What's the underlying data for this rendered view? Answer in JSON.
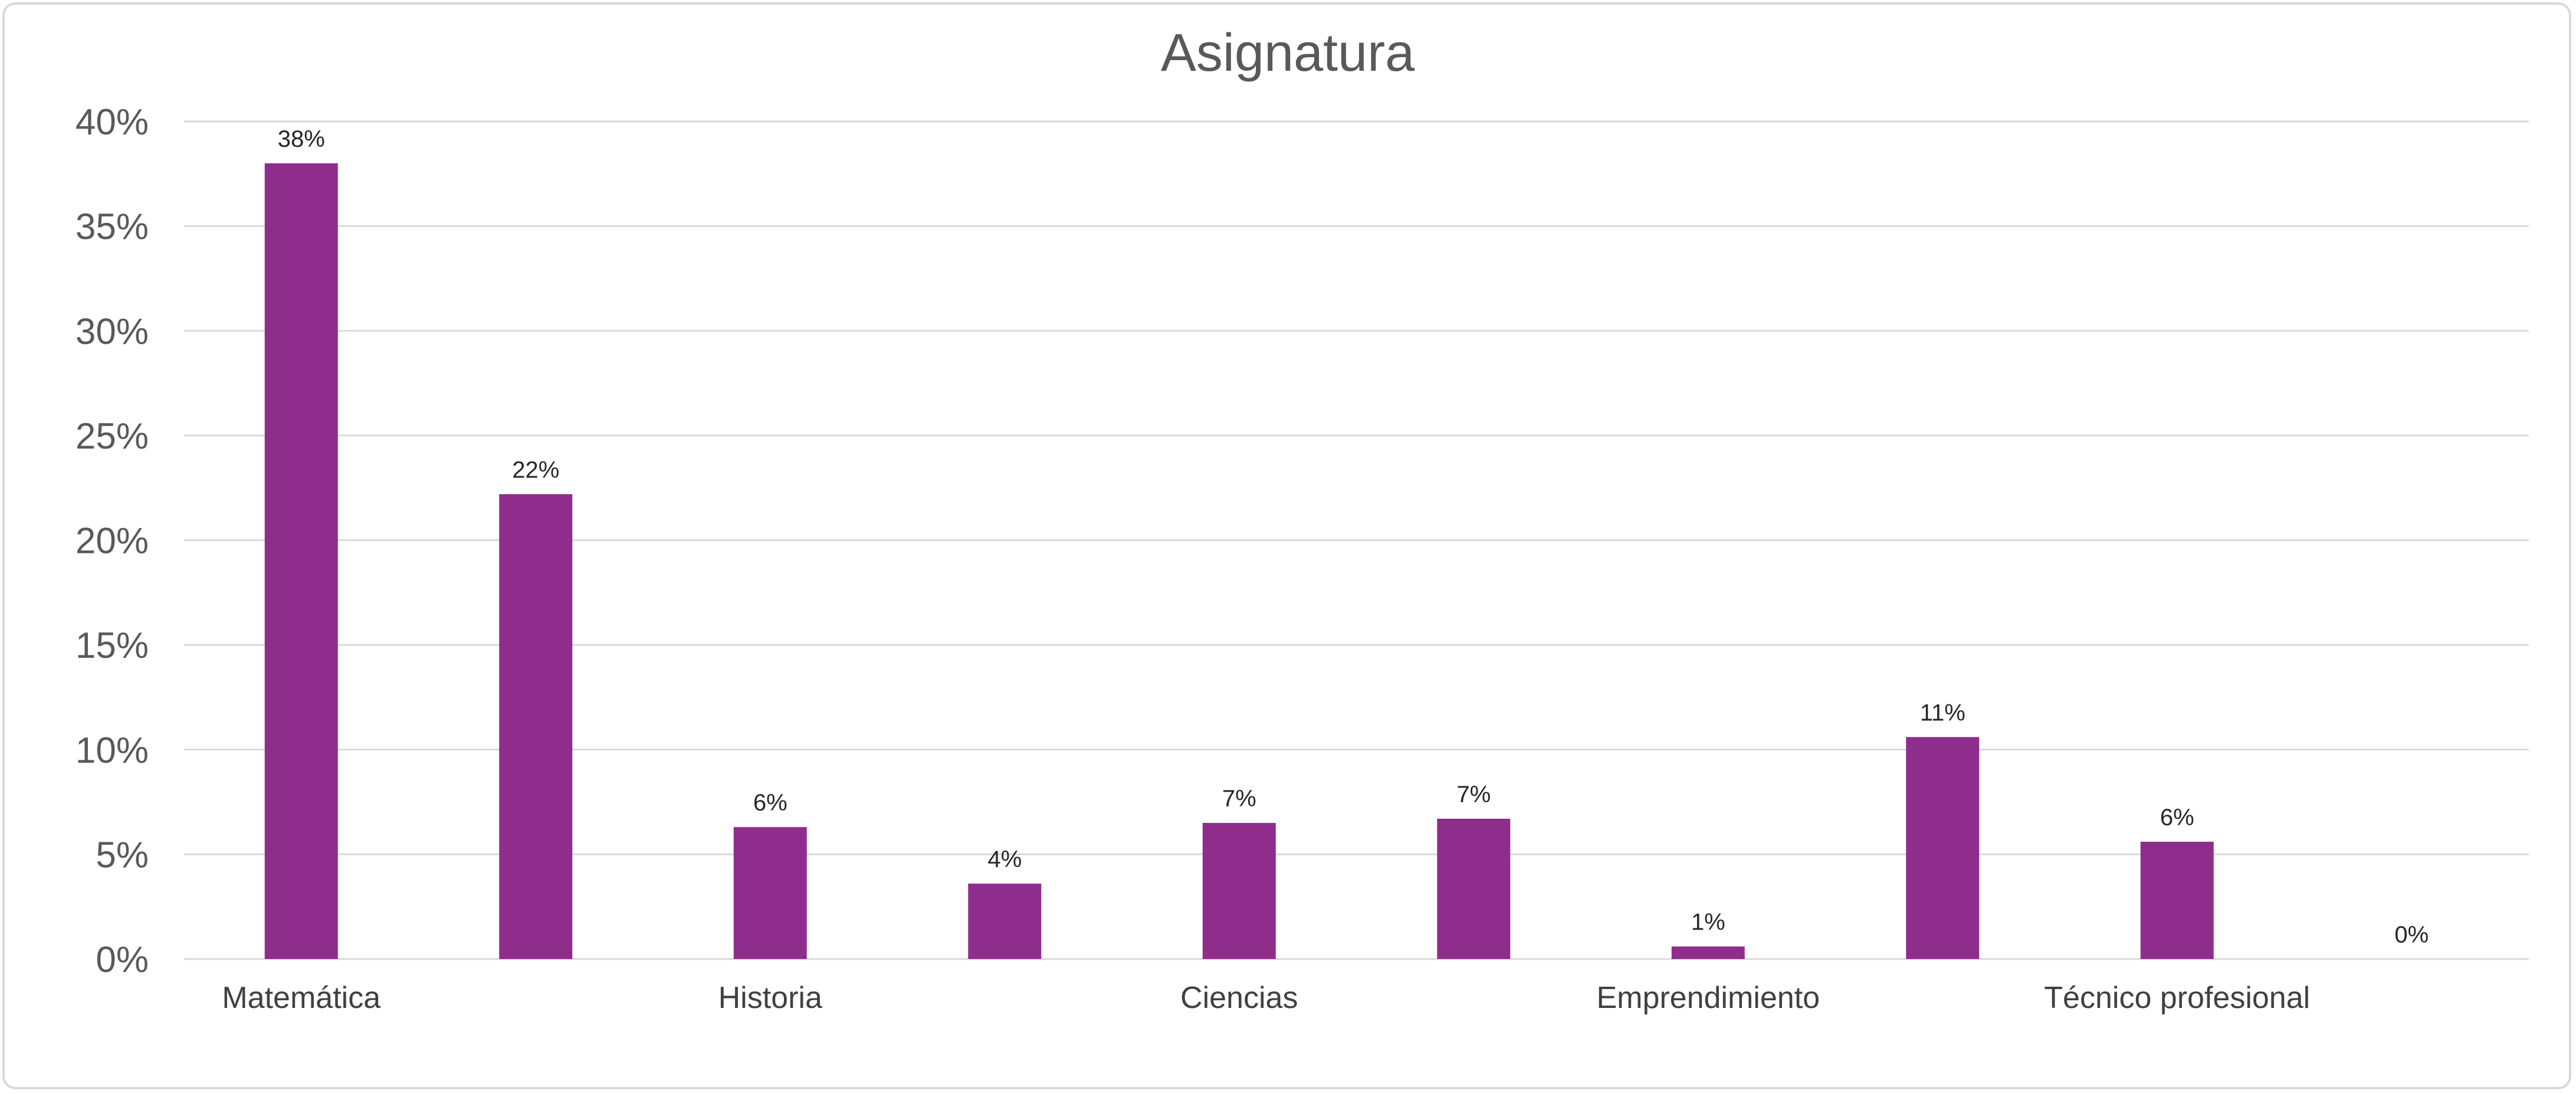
{
  "chart_data": {
    "type": "bar",
    "title": "Asignatura",
    "categories": [
      "Matemática",
      "",
      "Historia",
      "",
      "Ciencias",
      "",
      "Emprendimiento",
      "",
      "Técnico profesional",
      ""
    ],
    "values": [
      0.38,
      0.222,
      0.063,
      0.036,
      0.065,
      0.067,
      0.006,
      0.106,
      0.056,
      0.0
    ],
    "data_labels": [
      "38%",
      "22%",
      "6%",
      "4%",
      "7%",
      "7%",
      "1%",
      "11%",
      "6%",
      "0%"
    ],
    "ylim": [
      0,
      0.4
    ],
    "yticks": [
      {
        "value": 0,
        "label": "0%"
      },
      {
        "value": 0.05,
        "label": "5%"
      },
      {
        "value": 0.1,
        "label": "10%"
      },
      {
        "value": 0.15,
        "label": "15%"
      },
      {
        "value": 0.2,
        "label": "20%"
      },
      {
        "value": 0.25,
        "label": "25%"
      },
      {
        "value": 0.3,
        "label": "30%"
      },
      {
        "value": 0.35,
        "label": "35%"
      },
      {
        "value": 0.4,
        "label": "40%"
      }
    ],
    "xlabel": "",
    "ylabel": "",
    "grid": true,
    "bar_color": "#8e2d8c"
  }
}
